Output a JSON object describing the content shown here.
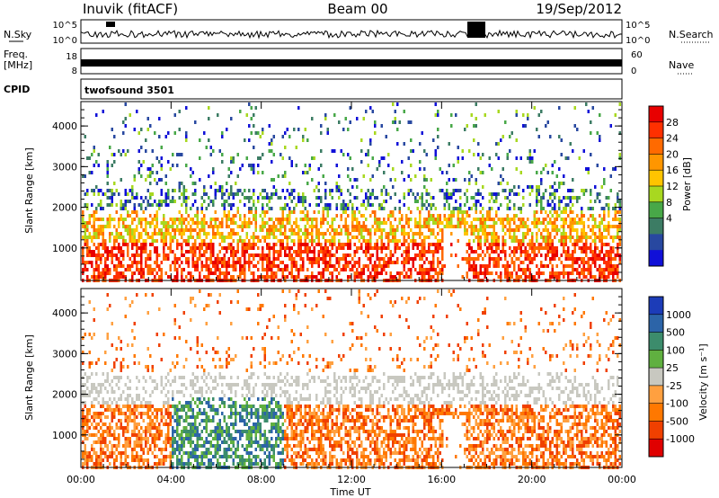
{
  "header": {
    "station": "Inuvik (fitACF)",
    "beam": "Beam 00",
    "date": "19/Sep/2012"
  },
  "status_panels": {
    "nsky_label": "N.Sky",
    "nsky_ticks": [
      "10^5",
      "10^0"
    ],
    "nsearch_label": "N.Search",
    "nsearch_ticks": [
      "10^5",
      "10^0"
    ],
    "freq_label_1": "Freq.",
    "freq_label_2": "[MHz]",
    "freq_ticks": [
      "18",
      "8"
    ],
    "nave_label": "Nave",
    "nave_ticks": [
      "60",
      "0"
    ],
    "cpid_label": "CPID",
    "cpid_value": "twofsound 3501"
  },
  "chart_data": [
    {
      "type": "heatmap",
      "name": "power",
      "ylabel": "Slant Range [km]",
      "yticks": [
        1000,
        2000,
        3000,
        4000
      ],
      "ylim": [
        200,
        4600
      ],
      "xlabel": "Time UT",
      "xticks": [
        "00:00",
        "04:00",
        "08:00",
        "12:00",
        "16:00",
        "20:00",
        "00:00"
      ],
      "xlim_hours": [
        0,
        24
      ],
      "colorbar": {
        "label": "Power [dB]",
        "ticks": [
          "28",
          "24",
          "20",
          "16",
          "12",
          "8",
          "4"
        ],
        "colors": [
          "#e80000",
          "#ff3000",
          "#ff6a00",
          "#ff9600",
          "#ffc400",
          "#a8d820",
          "#48a848",
          "#3c7c64",
          "#2848a0",
          "#1010d8"
        ]
      }
    },
    {
      "type": "heatmap",
      "name": "velocity",
      "ylabel": "Slant Range [km]",
      "yticks": [
        1000,
        2000,
        3000,
        4000
      ],
      "ylim": [
        200,
        4600
      ],
      "xlabel": "Time UT",
      "xticks": [
        "00:00",
        "04:00",
        "08:00",
        "12:00",
        "16:00",
        "20:00",
        "00:00"
      ],
      "xlim_hours": [
        0,
        24
      ],
      "colorbar": {
        "label": "Velocity [m s⁻¹]",
        "ticks": [
          "1000",
          "500",
          "100",
          "25",
          "-25",
          "-100",
          "-500",
          "-1000"
        ],
        "colors": [
          "#1c3cb8",
          "#2c64a8",
          "#3c8c6c",
          "#60b040",
          "#c8c8c0",
          "#ffa040",
          "#ff7800",
          "#f04000",
          "#e00000"
        ]
      }
    }
  ],
  "colors": {
    "ground_scatter": "#a0a0a0",
    "frame": "#000000"
  }
}
